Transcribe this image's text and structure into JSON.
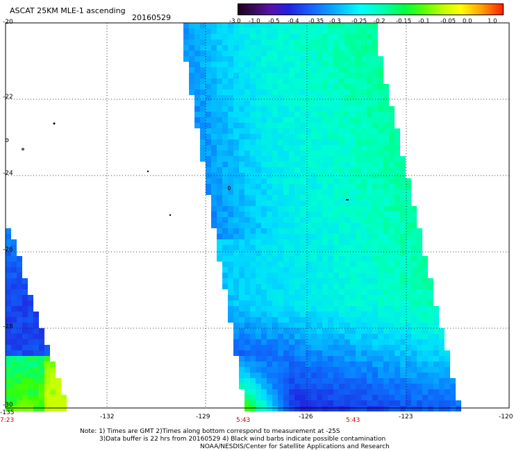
{
  "title": "ASCAT 25KM MLE-1 ascending",
  "date": "20160529",
  "colorbar": {
    "labels": [
      "-3.0",
      "-1.0",
      "-0.5",
      "-0.4",
      "-0.35",
      "-0.3",
      "-0.25",
      "-0.2",
      "-0.15",
      "-0.1",
      "-0.05",
      "0.0",
      "1.0"
    ]
  },
  "axes": {
    "lon_labels": [
      "-135",
      "-132",
      "-129",
      "-126",
      "-123",
      "-120"
    ],
    "lat_labels": [
      "-20",
      "-22",
      "-24",
      "-26",
      "-28",
      "-30"
    ]
  },
  "times": [
    "7:23",
    "5:43",
    "5:43"
  ],
  "notes": {
    "line1": "Note: 1) Times are GMT 2)Times along bottom correspond to measurement at -25S",
    "line2": "3)Data buffer is 22 hrs from 20160529 4) Black wind barbs indicate possible contamination",
    "line3": "NOAA/NESDIS/Center for Satellite Applications and Research"
  }
}
